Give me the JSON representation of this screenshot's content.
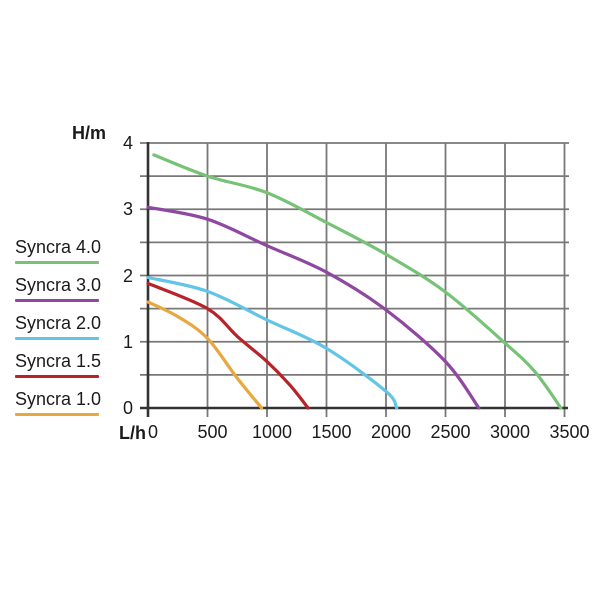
{
  "colors": {
    "background": "#ffffff",
    "grid": "#787878",
    "axis": "#333333",
    "text": "#1b1b1b"
  },
  "chart_data": {
    "type": "line",
    "title": "",
    "xlabel": "L/h",
    "ylabel": "H/m",
    "xlim": [
      0,
      3500
    ],
    "ylim": [
      0,
      4
    ],
    "x_ticks": [
      0,
      500,
      1000,
      1500,
      2000,
      2500,
      3000,
      3500
    ],
    "y_ticks": [
      4,
      3,
      2,
      1,
      0
    ],
    "x_grid_step": 500,
    "y_grid_step": 0.5,
    "grid": true,
    "legend_position": "left",
    "series": [
      {
        "name": "Syncra 4.0",
        "color": "#76c276",
        "points": [
          [
            50,
            3.82
          ],
          [
            500,
            3.5
          ],
          [
            1000,
            3.25
          ],
          [
            1500,
            2.8
          ],
          [
            2000,
            2.32
          ],
          [
            2500,
            1.75
          ],
          [
            3000,
            0.98
          ],
          [
            3250,
            0.55
          ],
          [
            3470,
            0
          ]
        ]
      },
      {
        "name": "Syncra 3.0",
        "color": "#8e48a0",
        "points": [
          [
            0,
            3.03
          ],
          [
            500,
            2.85
          ],
          [
            1000,
            2.45
          ],
          [
            1500,
            2.05
          ],
          [
            2000,
            1.48
          ],
          [
            2500,
            0.7
          ],
          [
            2780,
            0
          ]
        ]
      },
      {
        "name": "Syncra 2.0",
        "color": "#62c5e6",
        "points": [
          [
            0,
            1.97
          ],
          [
            500,
            1.76
          ],
          [
            1000,
            1.33
          ],
          [
            1500,
            0.9
          ],
          [
            2000,
            0.25
          ],
          [
            2090,
            0
          ]
        ]
      },
      {
        "name": "Syncra 1.5",
        "color": "#b8232a",
        "points": [
          [
            0,
            1.88
          ],
          [
            500,
            1.5
          ],
          [
            750,
            1.08
          ],
          [
            1000,
            0.7
          ],
          [
            1200,
            0.33
          ],
          [
            1345,
            0
          ]
        ]
      },
      {
        "name": "Syncra 1.0",
        "color": "#e8a73f",
        "points": [
          [
            0,
            1.6
          ],
          [
            250,
            1.38
          ],
          [
            500,
            1.05
          ],
          [
            750,
            0.45
          ],
          [
            955,
            0
          ]
        ]
      }
    ]
  }
}
